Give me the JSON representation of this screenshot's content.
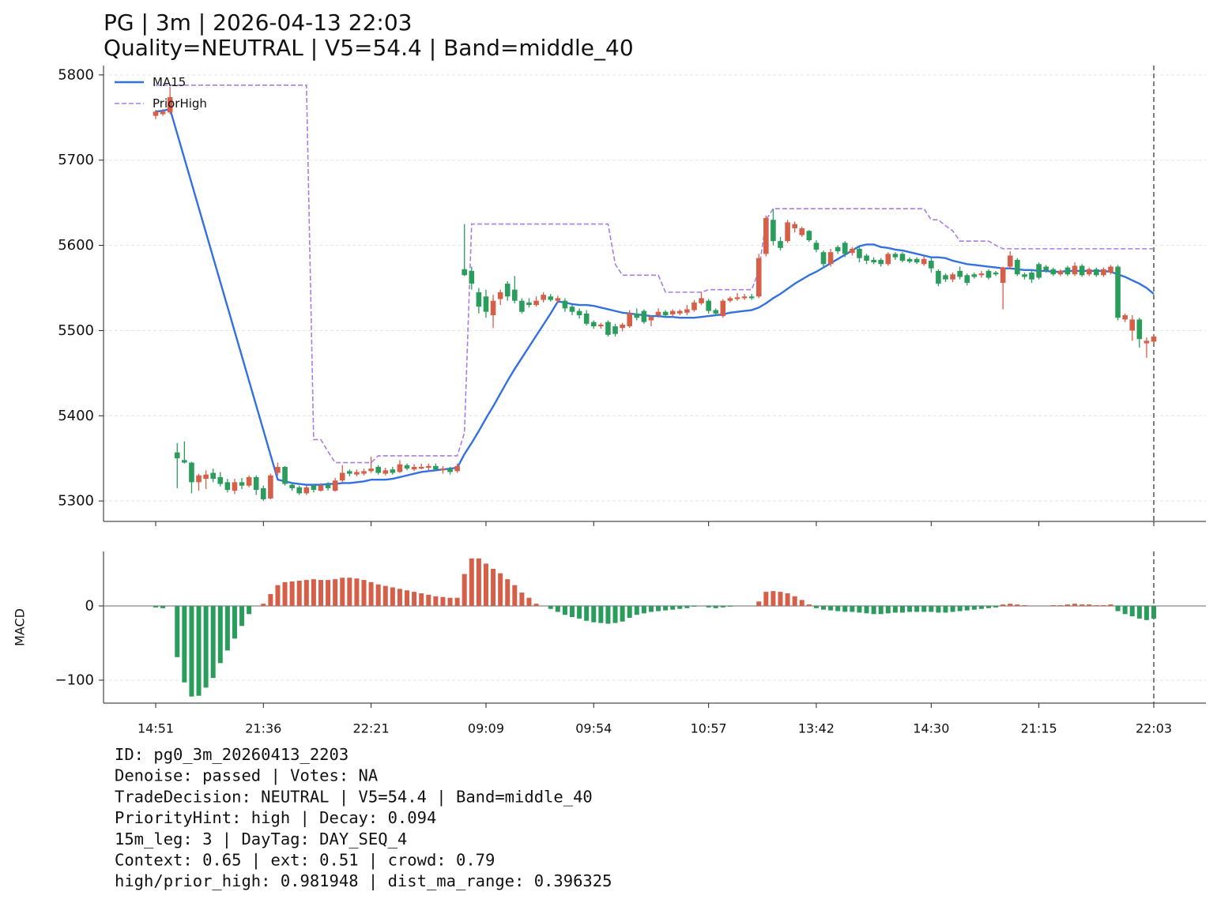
{
  "chart_data": [
    {
      "type": "candlestick",
      "title": "PG | 3m | 2026-04-13 22:03",
      "subtitle": "Quality=NEUTRAL | V5=54.4 | Band=middle_40",
      "up_color": "#d65f4a",
      "down_color": "#2a9d5c",
      "grid": true,
      "legend": "upper left",
      "ylim": [
        5276,
        5811
      ],
      "yticks": [
        5300,
        5400,
        5500,
        5600,
        5700,
        5800
      ],
      "open": [
        5752,
        5754,
        5756,
        5357,
        5348,
        5345,
        5322,
        5326,
        5333,
        5328,
        5322,
        5312,
        5322,
        5318,
        5328,
        5315,
        5303,
        5333,
        5340,
        5319,
        5316,
        5309,
        5318,
        5312,
        5319,
        5312,
        5324,
        5335,
        5331,
        5332,
        5335,
        5340,
        5332,
        5337,
        5334,
        5342,
        5337,
        5338,
        5339,
        5341,
        5336,
        5338,
        5335,
        5572,
        5570,
        5545,
        5540,
        5518,
        5537,
        5555,
        5548,
        5535,
        5533,
        5530,
        5536,
        5540,
        5535,
        5535,
        5528,
        5523,
        5520,
        5510,
        5505,
        5510,
        5505,
        5503,
        5505,
        5520,
        5523,
        5512,
        5518,
        5522,
        5519,
        5520,
        5521,
        5524,
        5532,
        5535,
        5524,
        5517,
        5535,
        5537,
        5538,
        5540,
        5540,
        5590,
        5630,
        5605,
        5605,
        5620,
        5612,
        5617,
        5603,
        5592,
        5578,
        5598,
        5603,
        5591,
        5596,
        5588,
        5583,
        5583,
        5578,
        5590,
        5590,
        5584,
        5584,
        5578,
        5582,
        5570,
        5565,
        5560,
        5570,
        5565,
        5566,
        5565,
        5570,
        5568,
        5556,
        5575,
        5583,
        5566,
        5568,
        5578,
        5575,
        5572,
        5566,
        5574,
        5566,
        5576,
        5566,
        5572,
        5565,
        5568,
        5575,
        5513,
        5500,
        5513,
        5485,
        5487
      ],
      "high": [
        5759,
        5760,
        5786,
        5368,
        5370,
        5346,
        5332,
        5336,
        5338,
        5334,
        5326,
        5326,
        5327,
        5330,
        5330,
        5318,
        5332,
        5345,
        5341,
        5322,
        5318,
        5318,
        5320,
        5321,
        5322,
        5327,
        5342,
        5337,
        5337,
        5338,
        5352,
        5342,
        5339,
        5340,
        5348,
        5344,
        5343,
        5344,
        5344,
        5344,
        5341,
        5340,
        5344,
        5625,
        5575,
        5550,
        5548,
        5542,
        5548,
        5558,
        5564,
        5538,
        5538,
        5540,
        5545,
        5543,
        5541,
        5538,
        5530,
        5526,
        5524,
        5512,
        5509,
        5512,
        5508,
        5509,
        5524,
        5526,
        5525,
        5518,
        5526,
        5524,
        5525,
        5525,
        5530,
        5536,
        5545,
        5537,
        5526,
        5537,
        5540,
        5544,
        5543,
        5543,
        5590,
        5635,
        5643,
        5610,
        5630,
        5628,
        5622,
        5618,
        5606,
        5594,
        5596,
        5600,
        5605,
        5598,
        5598,
        5590,
        5586,
        5585,
        5592,
        5592,
        5592,
        5586,
        5586,
        5587,
        5585,
        5572,
        5567,
        5568,
        5575,
        5567,
        5568,
        5570,
        5572,
        5570,
        5575,
        5593,
        5585,
        5568,
        5570,
        5580,
        5577,
        5574,
        5572,
        5576,
        5580,
        5578,
        5574,
        5574,
        5574,
        5577,
        5577,
        5520,
        5518,
        5515,
        5492,
        5496
      ],
      "low": [
        5748,
        5752,
        5754,
        5315,
        5344,
        5309,
        5312,
        5314,
        5322,
        5317,
        5310,
        5308,
        5314,
        5316,
        5307,
        5300,
        5302,
        5330,
        5318,
        5312,
        5307,
        5307,
        5310,
        5311,
        5312,
        5311,
        5322,
        5329,
        5329,
        5330,
        5333,
        5331,
        5330,
        5331,
        5333,
        5336,
        5335,
        5337,
        5336,
        5335,
        5332,
        5331,
        5333,
        5564,
        5548,
        5520,
        5515,
        5503,
        5530,
        5535,
        5532,
        5520,
        5527,
        5528,
        5533,
        5534,
        5532,
        5522,
        5518,
        5514,
        5506,
        5502,
        5502,
        5493,
        5493,
        5499,
        5503,
        5512,
        5508,
        5505,
        5515,
        5515,
        5516,
        5518,
        5518,
        5522,
        5530,
        5520,
        5517,
        5515,
        5533,
        5535,
        5536,
        5536,
        5538,
        5587,
        5600,
        5594,
        5603,
        5615,
        5610,
        5604,
        5592,
        5575,
        5575,
        5590,
        5586,
        5588,
        5580,
        5578,
        5578,
        5575,
        5576,
        5583,
        5580,
        5579,
        5578,
        5576,
        5568,
        5552,
        5557,
        5557,
        5560,
        5553,
        5561,
        5562,
        5560,
        5564,
        5525,
        5572,
        5564,
        5560,
        5556,
        5560,
        5568,
        5564,
        5564,
        5564,
        5564,
        5563,
        5564,
        5563,
        5563,
        5566,
        5512,
        5510,
        5488,
        5480,
        5468,
        5484
      ],
      "close": [
        5757,
        5757,
        5774,
        5350,
        5345,
        5322,
        5330,
        5331,
        5326,
        5320,
        5313,
        5322,
        5318,
        5328,
        5313,
        5302,
        5330,
        5340,
        5320,
        5315,
        5309,
        5316,
        5313,
        5318,
        5315,
        5324,
        5333,
        5332,
        5334,
        5335,
        5338,
        5333,
        5336,
        5333,
        5343,
        5338,
        5340,
        5340,
        5341,
        5337,
        5338,
        5334,
        5341,
        5565,
        5555,
        5528,
        5522,
        5535,
        5545,
        5540,
        5535,
        5522,
        5530,
        5535,
        5542,
        5536,
        5538,
        5526,
        5522,
        5518,
        5508,
        5505,
        5507,
        5495,
        5496,
        5507,
        5520,
        5515,
        5510,
        5516,
        5522,
        5518,
        5523,
        5523,
        5525,
        5533,
        5538,
        5523,
        5520,
        5535,
        5538,
        5539,
        5540,
        5538,
        5585,
        5632,
        5605,
        5597,
        5627,
        5625,
        5620,
        5606,
        5595,
        5578,
        5592,
        5593,
        5590,
        5596,
        5585,
        5582,
        5580,
        5578,
        5590,
        5586,
        5582,
        5581,
        5580,
        5584,
        5573,
        5555,
        5560,
        5566,
        5563,
        5556,
        5563,
        5567,
        5562,
        5566,
        5574,
        5588,
        5566,
        5563,
        5560,
        5562,
        5570,
        5566,
        5570,
        5566,
        5576,
        5565,
        5572,
        5565,
        5572,
        5575,
        5515,
        5518,
        5513,
        5490,
        5488,
        5493
      ],
      "series": [
        {
          "name": "MA15",
          "color": "#3370e0",
          "values": [
            5757,
            5758,
            5760,
            5731,
            5702,
            5673,
            5644,
            5615,
            5586,
            5557,
            5528,
            5499,
            5470,
            5441,
            5412,
            5383,
            5354,
            5325,
            5323,
            5321,
            5320,
            5319,
            5319,
            5319,
            5320,
            5320,
            5321,
            5321,
            5322,
            5323,
            5325,
            5325,
            5325,
            5326,
            5328,
            5330,
            5332,
            5334,
            5335,
            5336,
            5337,
            5338,
            5339,
            5355,
            5368,
            5382,
            5397,
            5411,
            5426,
            5441,
            5455,
            5468,
            5481,
            5494,
            5507,
            5520,
            5534,
            5533,
            5531,
            5530,
            5530,
            5529,
            5527,
            5525,
            5523,
            5521,
            5520,
            5519,
            5518,
            5517,
            5517,
            5516,
            5516,
            5515,
            5515,
            5515,
            5516,
            5517,
            5518,
            5519,
            5521,
            5522,
            5523,
            5524,
            5527,
            5532,
            5538,
            5543,
            5549,
            5555,
            5560,
            5565,
            5569,
            5574,
            5579,
            5584,
            5589,
            5594,
            5599,
            5601,
            5601,
            5598,
            5597,
            5595,
            5594,
            5592,
            5590,
            5588,
            5586,
            5586,
            5585,
            5582,
            5580,
            5578,
            5577,
            5576,
            5575,
            5574,
            5573,
            5573,
            5572,
            5571,
            5571,
            5570,
            5570,
            5569,
            5569,
            5570,
            5570,
            5570,
            5570,
            5570,
            5570,
            5569,
            5566,
            5563,
            5559,
            5555,
            5550,
            5543
          ]
        },
        {
          "name": "PriorHigh",
          "color": "#a97ee3",
          "dashed": true,
          "values": [
            5788,
            5788,
            5788,
            5788,
            5788,
            5788,
            5788,
            5788,
            5788,
            5788,
            5788,
            5788,
            5788,
            5788,
            5788,
            5788,
            5788,
            5788,
            5788,
            5788,
            5788,
            5788,
            5372,
            5372,
            5358,
            5345,
            5345,
            5345,
            5345,
            5345,
            5345,
            5353,
            5353,
            5353,
            5353,
            5353,
            5353,
            5353,
            5353,
            5353,
            5353,
            5353,
            5353,
            5380,
            5625,
            5625,
            5625,
            5625,
            5625,
            5625,
            5625,
            5625,
            5625,
            5625,
            5625,
            5625,
            5625,
            5625,
            5625,
            5625,
            5625,
            5625,
            5625,
            5625,
            5578,
            5565,
            5565,
            5565,
            5565,
            5565,
            5565,
            5545,
            5545,
            5545,
            5545,
            5545,
            5545,
            5548,
            5548,
            5548,
            5548,
            5548,
            5548,
            5548,
            5570,
            5630,
            5643,
            5643,
            5643,
            5643,
            5643,
            5643,
            5643,
            5643,
            5643,
            5643,
            5643,
            5643,
            5643,
            5643,
            5643,
            5643,
            5643,
            5643,
            5643,
            5643,
            5643,
            5643,
            5630,
            5630,
            5623,
            5617,
            5605,
            5605,
            5605,
            5605,
            5605,
            5600,
            5596,
            5596,
            5596,
            5596,
            5596,
            5596,
            5596,
            5596,
            5596,
            5596,
            5596,
            5596,
            5596,
            5596,
            5596,
            5596,
            5596,
            5596,
            5596,
            5596,
            5596,
            5596
          ]
        }
      ]
    },
    {
      "type": "bar",
      "ylabel": "MACD",
      "positive_color": "#d65f4a",
      "negative_color": "#2a9d5c",
      "grid": true,
      "ylim": [
        -130.9,
        73.4
      ],
      "yticks": [
        {
          "value": -100,
          "label": "−100"
        },
        0
      ],
      "categories": [
        "14:51",
        null,
        null,
        null,
        null,
        null,
        null,
        null,
        null,
        null,
        null,
        null,
        null,
        null,
        null,
        "21:36",
        null,
        null,
        null,
        null,
        null,
        null,
        null,
        null,
        null,
        null,
        null,
        null,
        null,
        null,
        "22:21",
        null,
        null,
        null,
        null,
        null,
        null,
        null,
        null,
        null,
        null,
        null,
        null,
        null,
        null,
        null,
        "09:09",
        null,
        null,
        null,
        null,
        null,
        null,
        null,
        null,
        null,
        null,
        null,
        null,
        null,
        null,
        "09:54",
        null,
        null,
        null,
        null,
        null,
        null,
        null,
        null,
        null,
        null,
        null,
        null,
        null,
        null,
        null,
        "10:57",
        null,
        null,
        null,
        null,
        null,
        null,
        null,
        null,
        null,
        null,
        null,
        null,
        null,
        null,
        "13:42",
        null,
        null,
        null,
        null,
        null,
        null,
        null,
        null,
        null,
        null,
        null,
        null,
        null,
        null,
        null,
        "14:30",
        null,
        null,
        null,
        null,
        null,
        null,
        null,
        null,
        null,
        null,
        null,
        null,
        null,
        null,
        "21:15",
        null,
        null,
        null,
        null,
        null,
        null,
        null,
        null,
        null,
        null,
        null,
        null,
        null,
        null,
        null,
        "22:03"
      ],
      "values": [
        -2,
        -3,
        0,
        -69,
        -103,
        -122,
        -121,
        -110,
        -97,
        -77,
        -60,
        -44,
        -27,
        -11,
        0,
        3,
        16,
        28,
        32,
        33,
        34,
        35,
        36,
        35,
        35,
        36,
        38,
        38,
        37,
        35,
        32,
        29,
        27,
        25,
        23,
        21,
        19,
        17,
        15,
        13,
        12,
        11,
        11,
        43,
        64,
        64,
        57,
        50,
        44,
        36,
        28,
        18,
        11,
        3,
        0,
        -4,
        -8,
        -12,
        -15,
        -17,
        -20,
        -22,
        -23,
        -24,
        -23,
        -21,
        -16,
        -12,
        -10,
        -8,
        -7,
        -6,
        -5,
        -4,
        -3,
        -1,
        0,
        -2,
        -3,
        -2,
        -1,
        0,
        0,
        0,
        6,
        19,
        20,
        19,
        17,
        13,
        8,
        2,
        -3,
        -5,
        -6,
        -7,
        -8,
        -8,
        -9,
        -10,
        -11,
        -11,
        -10,
        -9,
        -9,
        -8,
        -8,
        -8,
        -8,
        -9,
        -9,
        -8,
        -7,
        -6,
        -5,
        -4,
        -3,
        -2,
        2,
        3,
        2,
        1,
        0,
        0,
        0,
        1,
        1,
        2,
        3,
        2,
        2,
        1,
        1,
        2,
        -7,
        -11,
        -14,
        -17,
        -19,
        -17
      ]
    }
  ],
  "info": [
    "ID: pg0_3m_20260413_2203",
    "Denoise: passed | Votes: NA",
    "TradeDecision: NEUTRAL | V5=54.4 | Band=middle_40",
    "PriorityHint: high | Decay: 0.094",
    "15m_leg: 3 | DayTag: DAY_SEQ_4",
    "Context: 0.65 | ext: 0.51 | crowd: 0.79",
    "high/prior_high: 0.981948 | dist_ma_range: 0.396325"
  ]
}
